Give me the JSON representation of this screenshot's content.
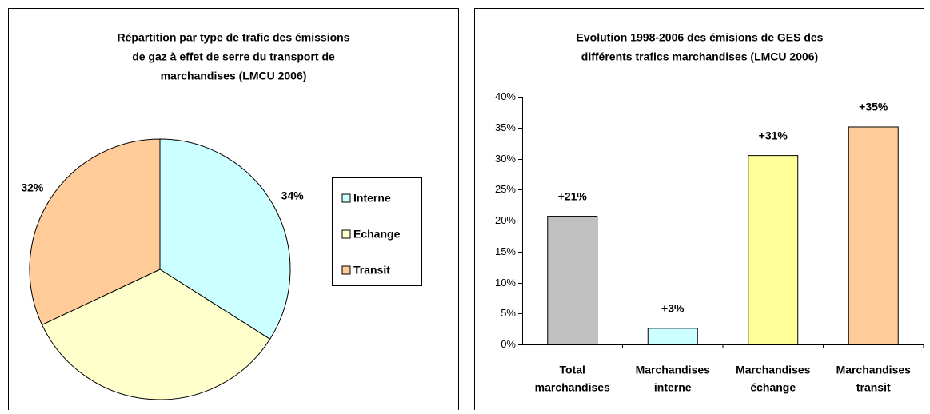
{
  "chart_data": [
    {
      "type": "pie",
      "title": [
        "Répartition par type de trafic des émissions",
        "de gaz à effet de serre du transport de",
        "marchandises (LMCU 2006)"
      ],
      "categories": [
        "Interne",
        "Echange",
        "Transit"
      ],
      "values": [
        34,
        34,
        32
      ],
      "value_labels": [
        "34%",
        "34%",
        "32%"
      ],
      "colors": [
        "#ccffff",
        "#ffffcc",
        "#ffcc99"
      ],
      "legend": "right"
    },
    {
      "type": "bar",
      "title": [
        "Evolution 1998-2006 des émisions de GES des",
        "différents trafics marchandises (LMCU 2006)"
      ],
      "categories": [
        [
          "Total",
          "marchandises"
        ],
        [
          "Marchandises",
          "interne"
        ],
        [
          "Marchandises",
          "échange"
        ],
        [
          "Marchandises",
          "transit"
        ]
      ],
      "values": [
        20.7,
        2.6,
        30.5,
        35.1
      ],
      "value_labels": [
        "+21%",
        "+3%",
        "+31%",
        "+35%"
      ],
      "colors": [
        "#c0c0c0",
        "#ccffff",
        "#ffff99",
        "#ffcc99"
      ],
      "ylim": [
        0,
        40
      ],
      "yticks": [
        {
          "value": 0,
          "label": "0%"
        },
        {
          "value": 5,
          "label": "5%"
        },
        {
          "value": 10,
          "label": "10%"
        },
        {
          "value": 15,
          "label": "15%"
        },
        {
          "value": 20,
          "label": "20%"
        },
        {
          "value": 25,
          "label": "25%"
        },
        {
          "value": 30,
          "label": "30%"
        },
        {
          "value": 35,
          "label": "35%"
        },
        {
          "value": 40,
          "label": "40%"
        }
      ]
    }
  ]
}
